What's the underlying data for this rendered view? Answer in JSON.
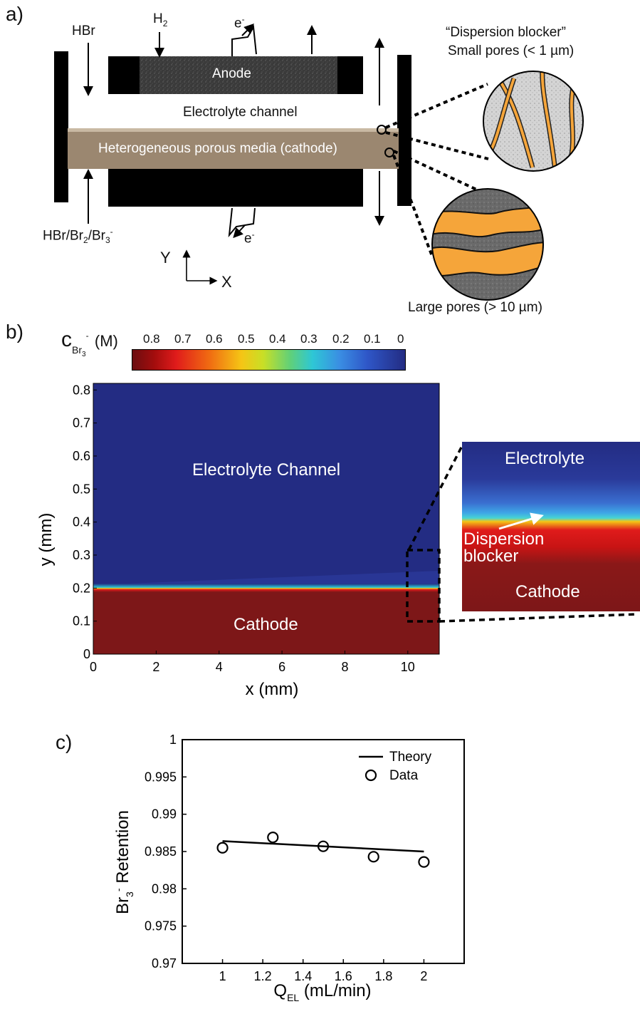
{
  "panel_a": {
    "label": "a)",
    "anode_label": "Anode",
    "electrolyte_channel_label": "Electrolyte channel",
    "cathode_label": "Heterogeneous porous media (cathode)",
    "hbr_in": "HBr",
    "h2_in_base": "H",
    "h2_in_sub": "2",
    "electron": "e",
    "electron_sup": "-",
    "bottom_inlet_parts": [
      "HBr/Br",
      "2",
      "/Br",
      "3",
      "-"
    ],
    "axis_y": "Y",
    "axis_x": "X",
    "small_pores_title": "“Dispersion blocker”",
    "small_pores_subtitle": "Small pores (< 1 µm)",
    "large_pores_label": "Large pores (> 10 µm)",
    "colors": {
      "bar": "#000000",
      "anode": "#3c3c3c",
      "cathode": "#9b8770",
      "pore_fill": "#f5a53a"
    }
  },
  "panel_b": {
    "label": "b)",
    "colorbar_symbol": "c",
    "colorbar_sub": "Br",
    "colorbar_sub_sub": "3",
    "colorbar_sup": "-",
    "colorbar_unit": "(M)",
    "colorbar_ticks": [
      "0.8",
      "0.7",
      "0.6",
      "0.5",
      "0.4",
      "0.3",
      "0.2",
      "0.1",
      "0"
    ],
    "region_top": "Electrolyte Channel",
    "region_bottom": "Cathode",
    "inset_top": "Electrolyte",
    "inset_mid_1": "Dispersion",
    "inset_mid_2": "blocker",
    "inset_bottom": "Cathode",
    "colors": {
      "electrolyte": "#232c83",
      "cathode": "#7d1718"
    }
  },
  "panel_c": {
    "label": "c)",
    "ylabel_parts": [
      "Br",
      "3",
      "-",
      " Retention"
    ],
    "xlabel_parts": [
      "Q",
      "EL",
      " (mL/min)"
    ]
  },
  "chart_data": [
    {
      "type": "heatmap",
      "xlabel": "x (mm)",
      "ylabel": "y (mm)",
      "xlim": [
        0,
        11
      ],
      "ylim": [
        0,
        0.82
      ],
      "xticks": [
        "0",
        "2",
        "4",
        "6",
        "8",
        "10"
      ],
      "yticks": [
        "0",
        "0.1",
        "0.2",
        "0.3",
        "0.4",
        "0.5",
        "0.6",
        "0.7",
        "0.8"
      ],
      "interface_y_mm": 0.205,
      "colorbar_range": [
        0,
        0.9
      ]
    },
    {
      "type": "scatter",
      "xlim": [
        0.8,
        2.2
      ],
      "ylim": [
        0.97,
        1.0
      ],
      "xticks": [
        "1",
        "1.2",
        "1.4",
        "1.6",
        "1.8",
        "2"
      ],
      "yticks": [
        "0.97",
        "0.975",
        "0.98",
        "0.985",
        "0.99",
        "0.995",
        "1"
      ],
      "series": [
        {
          "name": "Theory",
          "kind": "line",
          "x": [
            1.0,
            2.0
          ],
          "y": [
            0.9864,
            0.985
          ]
        },
        {
          "name": "Data",
          "kind": "markers",
          "x": [
            1.0,
            1.25,
            1.5,
            1.75,
            2.0
          ],
          "y": [
            0.9855,
            0.9869,
            0.9857,
            0.9843,
            0.9836
          ]
        }
      ]
    }
  ]
}
